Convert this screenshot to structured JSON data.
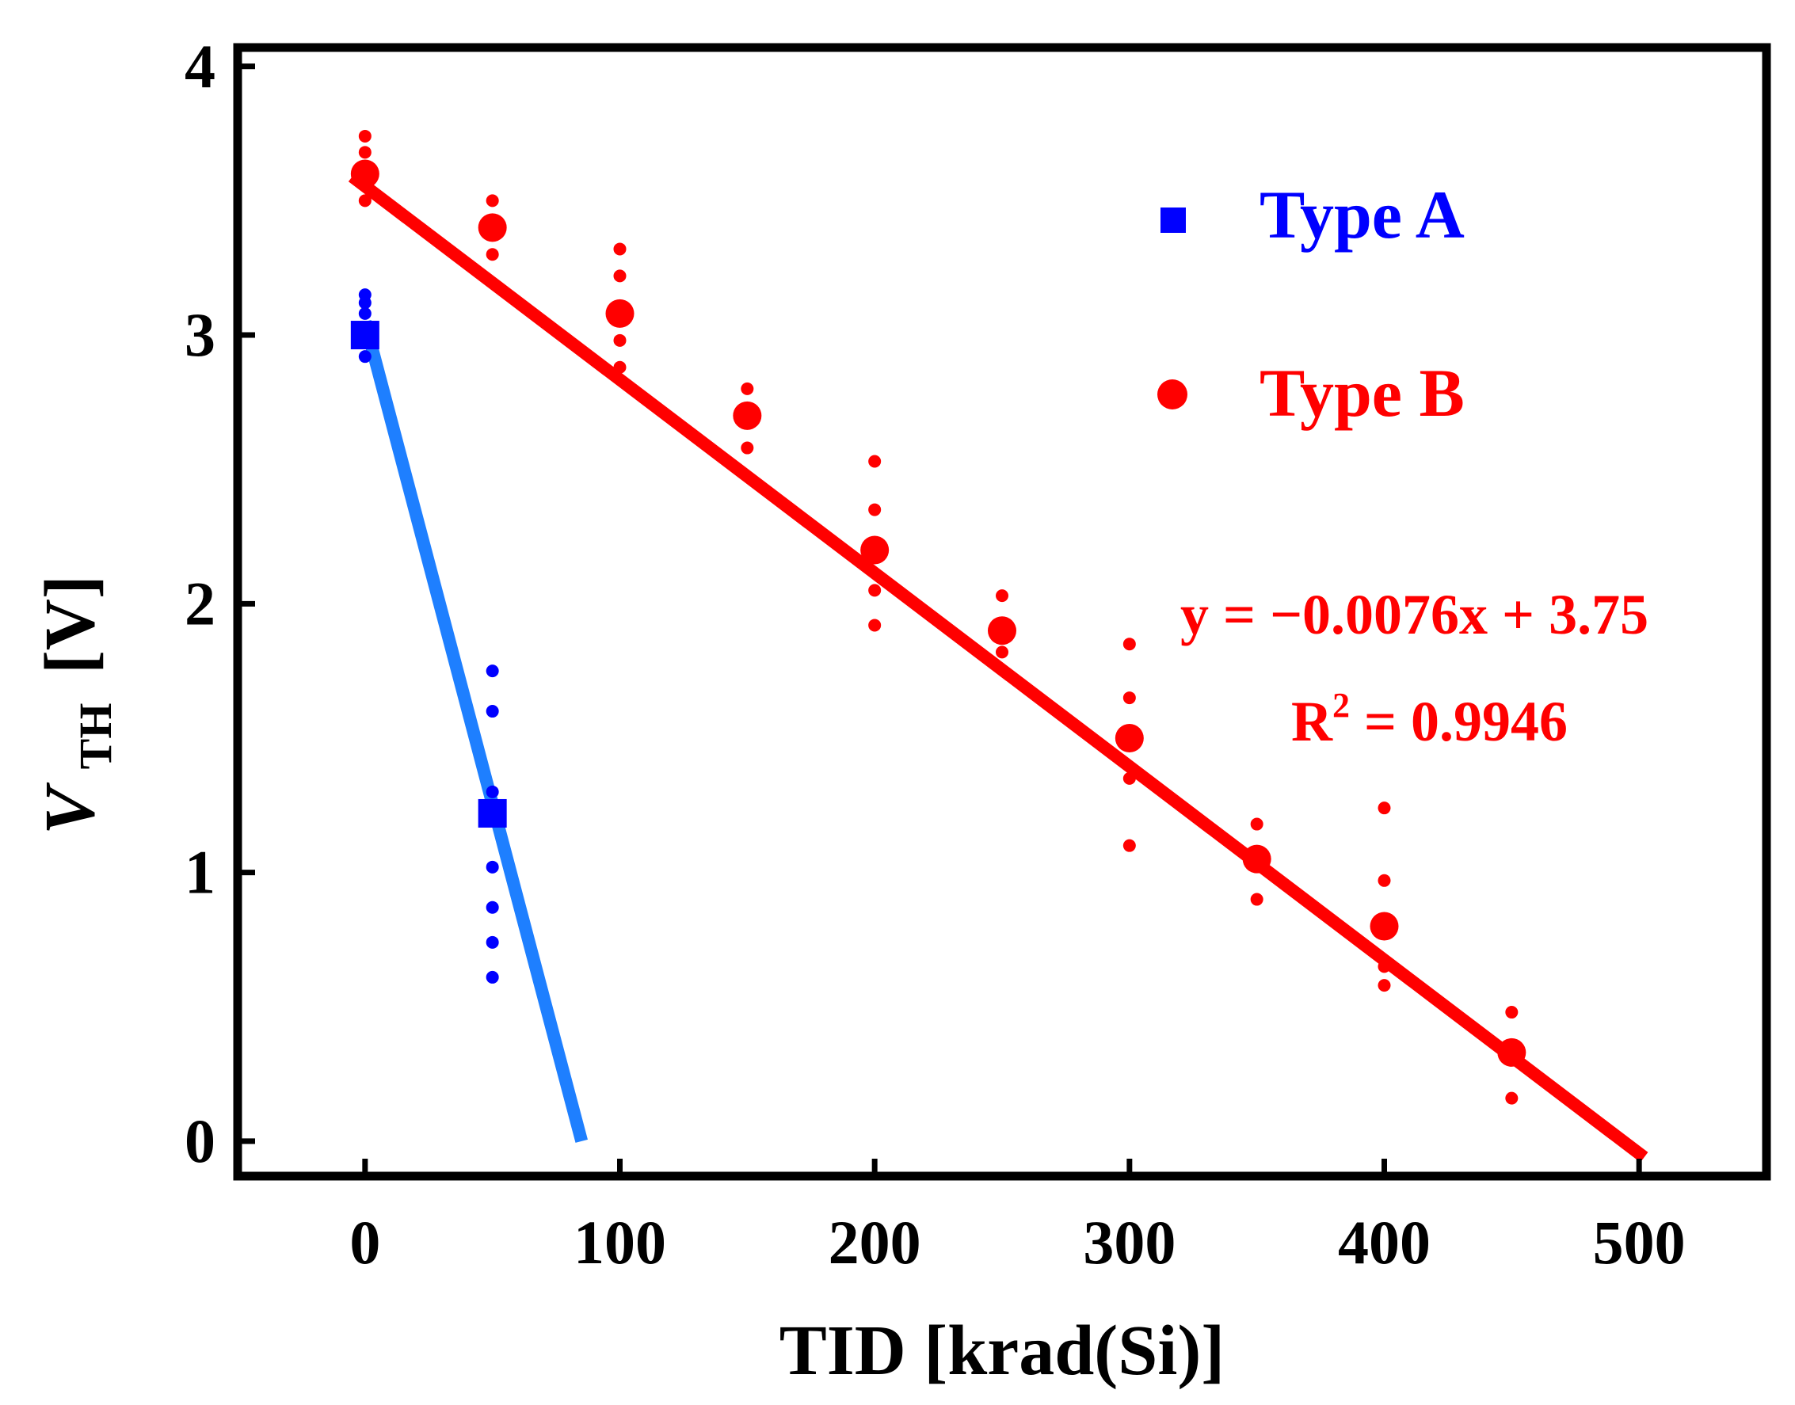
{
  "chart_data": {
    "type": "scatter",
    "title": "",
    "xlabel": "TID [krad(Si)]",
    "ylabel_main": "V",
    "ylabel_sub": "TH",
    "ylabel_unit": "[V]",
    "xlim": [
      -50,
      550
    ],
    "ylim": [
      -0.13,
      4.07
    ],
    "xticks": [
      0,
      100,
      200,
      300,
      400,
      500
    ],
    "yticks": [
      0,
      1,
      2,
      3,
      4
    ],
    "legend_position": "top-right",
    "series": [
      {
        "name": "Type A",
        "color": "#0000ff",
        "marker": "square",
        "mean_points": [
          [
            0,
            3.0
          ],
          [
            50,
            1.22
          ]
        ],
        "spread_points": [
          [
            0,
            3.15
          ],
          [
            0,
            3.12
          ],
          [
            0,
            3.08
          ],
          [
            0,
            2.92
          ],
          [
            50,
            1.75
          ],
          [
            50,
            1.6
          ],
          [
            50,
            1.3
          ],
          [
            50,
            1.02
          ],
          [
            50,
            0.87
          ],
          [
            50,
            0.74
          ],
          [
            50,
            0.61
          ]
        ],
        "fit": {
          "color": "#1e7fff",
          "x1": 0,
          "y1": 3.05,
          "x2": 85,
          "y2": 0.0
        }
      },
      {
        "name": "Type B",
        "color": "#ff0000",
        "marker": "circle",
        "mean_points": [
          [
            0,
            3.6
          ],
          [
            50,
            3.4
          ],
          [
            100,
            3.08
          ],
          [
            150,
            2.7
          ],
          [
            200,
            2.2
          ],
          [
            250,
            1.9
          ],
          [
            300,
            1.5
          ],
          [
            350,
            1.05
          ],
          [
            400,
            0.8
          ],
          [
            450,
            0.33
          ]
        ],
        "spread_points": [
          [
            0,
            3.74
          ],
          [
            0,
            3.68
          ],
          [
            0,
            3.5
          ],
          [
            50,
            3.5
          ],
          [
            50,
            3.3
          ],
          [
            100,
            3.32
          ],
          [
            100,
            3.22
          ],
          [
            100,
            2.98
          ],
          [
            100,
            2.88
          ],
          [
            150,
            2.8
          ],
          [
            150,
            2.58
          ],
          [
            200,
            2.53
          ],
          [
            200,
            2.35
          ],
          [
            200,
            2.05
          ],
          [
            200,
            1.92
          ],
          [
            250,
            2.03
          ],
          [
            250,
            1.82
          ],
          [
            300,
            1.85
          ],
          [
            300,
            1.65
          ],
          [
            300,
            1.35
          ],
          [
            300,
            1.1
          ],
          [
            350,
            1.18
          ],
          [
            350,
            0.9
          ],
          [
            400,
            1.24
          ],
          [
            400,
            0.97
          ],
          [
            400,
            0.65
          ],
          [
            400,
            0.58
          ],
          [
            450,
            0.48
          ],
          [
            450,
            0.16
          ]
        ],
        "fit": {
          "color": "#ff0000",
          "x1": -5,
          "y1": 3.59,
          "x2": 502,
          "y2": -0.06
        }
      }
    ],
    "annotations": {
      "equation": "y = −0.0076x + 3.75",
      "r2_label": "R",
      "r2_sup": "2",
      "r2_value": " = 0.9946"
    }
  }
}
